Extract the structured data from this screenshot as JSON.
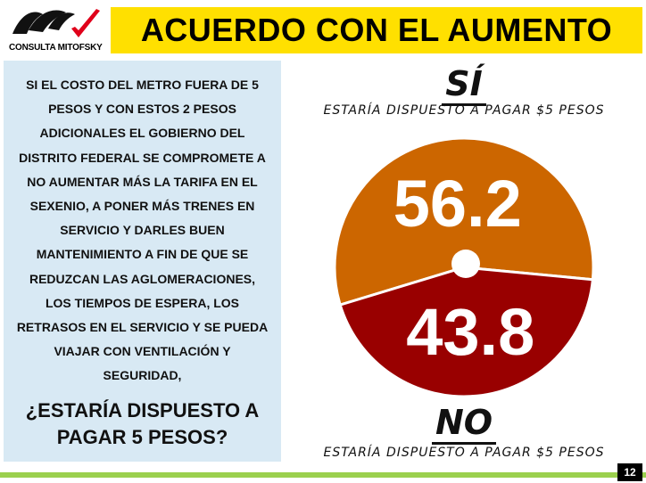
{
  "logo": {
    "icon": "mitofsky-brush-logo",
    "text": "CONSULTA MITOFSKY",
    "check_color": "#e0001a"
  },
  "title": "ACUERDO CON EL AUMENTO",
  "colors": {
    "title_bg": "#ffe000",
    "panel_bg": "#d8e9f4",
    "yes": "#cc6600",
    "no": "#990000",
    "footer": "#9bd04e"
  },
  "question": {
    "body_lines": [
      "SI EL COSTO DEL METRO FUERA DE 5",
      "PESOS Y CON ESTOS 2 PESOS",
      "ADICIONALES EL GOBIERNO DEL",
      "DISTRITO FEDERAL SE COMPROMETE A",
      "NO AUMENTAR MÁS LA TARIFA EN EL",
      "SEXENIO, A PONER MÁS TRENES EN",
      "SERVICIO Y DARLES BUEN",
      "MANTENIMIENTO A FIN DE QUE  SE",
      "REDUZCAN LAS AGLOMERACIONES,",
      "LOS TIEMPOS DE ESPERA, LOS",
      "RETRASOS EN EL SERVICIO Y SE PUEDA",
      "VIAJAR CON VENTILACIÓN Y",
      "SEGURIDAD,"
    ],
    "main_lines": [
      "¿ESTARÍA DISPUESTO A",
      "PAGAR 5 PESOS?"
    ]
  },
  "chart_data": {
    "type": "pie",
    "slices": [
      {
        "label": "SÍ",
        "sublabel": "ESTARÍA DISPUESTO A PAGAR $5 PESOS",
        "value": 56.2,
        "value_label": "56.2",
        "color": "#cc6600"
      },
      {
        "label": "NO",
        "sublabel": "ESTARÍA DISPUESTO A PAGAR $5 PESOS",
        "value": 43.8,
        "value_label": "43.8",
        "color": "#990000"
      }
    ]
  },
  "page_number": "12"
}
